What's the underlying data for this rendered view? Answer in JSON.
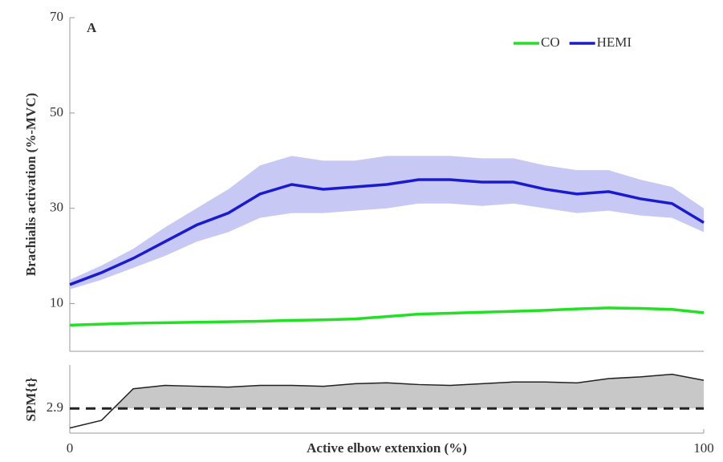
{
  "chart_data": [
    {
      "type": "line",
      "panel_label": "A",
      "y_label": "Brachialis activation (%-MVC)",
      "x": [
        0,
        5,
        10,
        15,
        20,
        25,
        30,
        35,
        40,
        45,
        50,
        55,
        60,
        65,
        70,
        75,
        80,
        85,
        90,
        95,
        100
      ],
      "xlim": [
        0,
        100
      ],
      "ylim": [
        0,
        70
      ],
      "yticks": [
        10,
        30,
        50,
        70
      ],
      "legend": "upper right",
      "series": [
        {
          "name": "CO",
          "color": "#22e022",
          "values": [
            5.5,
            5.7,
            5.9,
            6.0,
            6.1,
            6.2,
            6.3,
            6.5,
            6.6,
            6.8,
            7.3,
            7.8,
            8.0,
            8.2,
            8.4,
            8.6,
            8.9,
            9.1,
            9.0,
            8.8,
            8.1
          ]
        },
        {
          "name": "HEMI",
          "color": "#1a1ad0",
          "band_color": "#c8c8f4",
          "values": [
            14,
            16.5,
            19.5,
            23,
            26.5,
            29,
            33,
            35,
            34,
            34.5,
            35,
            36,
            36,
            35.5,
            35.5,
            34,
            33,
            33.5,
            32,
            31,
            27
          ],
          "band_lower": [
            13,
            15,
            17.5,
            20,
            23,
            25,
            28,
            29,
            29,
            29.5,
            30,
            31,
            31,
            30.5,
            31,
            30,
            29,
            29.5,
            28.5,
            28,
            25
          ],
          "band_upper": [
            15,
            18,
            21.5,
            26,
            30,
            34,
            39,
            41,
            40,
            40,
            41,
            41,
            41,
            40.5,
            40.5,
            39,
            38,
            38,
            36,
            34.5,
            30
          ]
        }
      ]
    },
    {
      "type": "spm",
      "y_label": "SPM{t}",
      "x_label": "Active elbow extenxion (%)",
      "x": [
        0,
        5,
        10,
        15,
        20,
        25,
        30,
        35,
        40,
        45,
        50,
        55,
        60,
        65,
        70,
        75,
        80,
        85,
        90,
        95,
        100
      ],
      "xlim": [
        0,
        100
      ],
      "xticks": [
        0,
        100
      ],
      "ylim": [
        0,
        8
      ],
      "yticks": [
        2.9
      ],
      "threshold": 2.9,
      "color": "#222222",
      "fill": "#c8c8c8",
      "values": [
        0.6,
        1.5,
        5.2,
        5.6,
        5.5,
        5.4,
        5.6,
        5.6,
        5.5,
        5.8,
        5.9,
        5.7,
        5.6,
        5.8,
        6.0,
        6.0,
        5.9,
        6.4,
        6.6,
        6.9,
        6.2
      ]
    }
  ]
}
